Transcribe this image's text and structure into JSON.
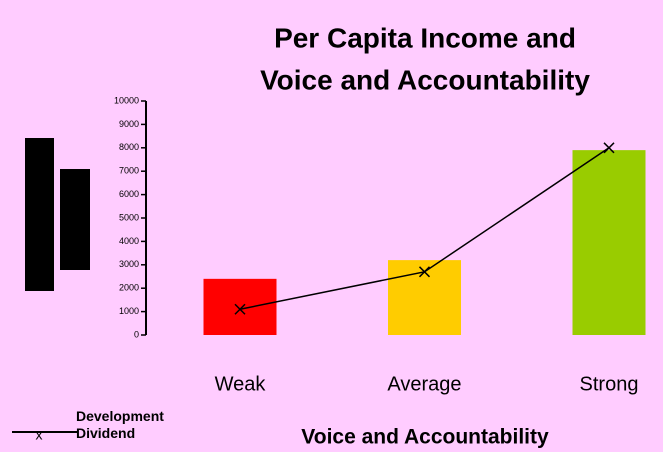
{
  "chart_data": {
    "type": "bar-line",
    "title": [
      "Per Capita Income and",
      "Voice and Accountability"
    ],
    "xlabel": "Voice and Accountability",
    "categories": [
      "Weak",
      "Average",
      "Strong"
    ],
    "values": [
      2400,
      3200,
      7900
    ],
    "colors": [
      "#ff0000",
      "#ffcc00",
      "#99cc00"
    ],
    "series": [
      {
        "name": "Development Dividend",
        "color": "#000000",
        "marker": "x",
        "values": [
          1100,
          2700,
          8000
        ]
      }
    ],
    "ylim": [
      0,
      10000
    ],
    "yticks": [
      0,
      1000,
      2000,
      3000,
      4000,
      5000,
      6000,
      7000,
      8000,
      9000,
      10000
    ],
    "legend": "bottom-left"
  }
}
